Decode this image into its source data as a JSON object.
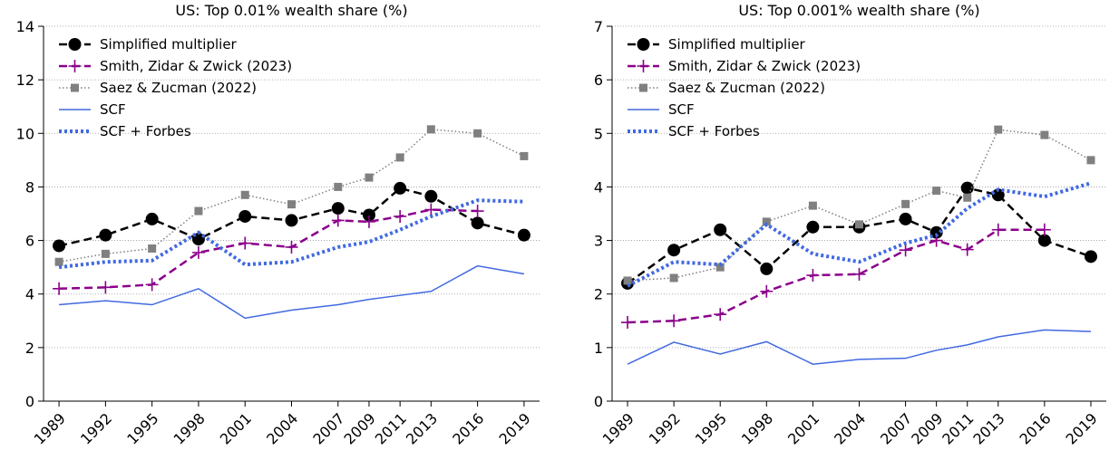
{
  "chart_data": [
    {
      "type": "line",
      "title": "US: Top 0.01% wealth share (%)",
      "x": [
        1989,
        1992,
        1995,
        1998,
        2001,
        2004,
        2007,
        2009,
        2011,
        2013,
        2016,
        2019
      ],
      "xlim": [
        1988,
        2020
      ],
      "xticks": [
        1989,
        1992,
        1995,
        1998,
        2001,
        2004,
        2007,
        2009,
        2011,
        2013,
        2016,
        2019
      ],
      "ylim": [
        0,
        14
      ],
      "yticks": [
        0,
        2,
        4,
        6,
        8,
        10,
        12,
        14
      ],
      "grid": true,
      "legend": "upper left",
      "series": [
        {
          "name": "Simplified multiplier",
          "color": "#000000",
          "linestyle": "dashed",
          "marker": "circle",
          "values": [
            5.8,
            6.2,
            6.8,
            6.05,
            6.9,
            6.75,
            7.2,
            6.95,
            7.95,
            7.65,
            6.65,
            6.2
          ]
        },
        {
          "name": "Smith, Zidar & Zwick (2023)",
          "color": "#8b008b",
          "linestyle": "dashed",
          "marker": "plus",
          "values": [
            4.2,
            4.25,
            4.35,
            5.55,
            5.9,
            5.75,
            6.75,
            6.7,
            6.9,
            7.15,
            7.1,
            null
          ]
        },
        {
          "name": "Saez & Zucman (2022)",
          "color": "#808080",
          "linestyle": "dotted",
          "marker": "square",
          "values": [
            5.2,
            5.5,
            5.7,
            7.1,
            7.7,
            7.35,
            8.0,
            8.35,
            9.1,
            10.15,
            10.0,
            9.15
          ]
        },
        {
          "name": "SCF",
          "color": "#4169e1",
          "linestyle": "solid",
          "marker": "none",
          "values": [
            3.6,
            3.75,
            3.6,
            4.2,
            3.1,
            3.4,
            3.6,
            3.8,
            3.95,
            4.1,
            5.05,
            4.75
          ]
        },
        {
          "name": "SCF + Forbes",
          "color": "#4169e1",
          "linestyle": "thick-dotted",
          "marker": "none",
          "values": [
            5.0,
            5.2,
            5.25,
            6.3,
            5.1,
            5.2,
            5.75,
            5.95,
            6.4,
            6.9,
            7.5,
            7.45
          ]
        }
      ]
    },
    {
      "type": "line",
      "title": "US: Top 0.001% wealth share (%)",
      "x": [
        1989,
        1992,
        1995,
        1998,
        2001,
        2004,
        2007,
        2009,
        2011,
        2013,
        2016,
        2019
      ],
      "xlim": [
        1988,
        2020
      ],
      "xticks": [
        1989,
        1992,
        1995,
        1998,
        2001,
        2004,
        2007,
        2009,
        2011,
        2013,
        2016,
        2019
      ],
      "ylim": [
        0,
        7
      ],
      "yticks": [
        0,
        1,
        2,
        3,
        4,
        5,
        6,
        7
      ],
      "grid": true,
      "legend": "upper left",
      "series": [
        {
          "name": "Simplified multiplier",
          "color": "#000000",
          "linestyle": "dashed",
          "marker": "circle",
          "values": [
            2.2,
            2.82,
            3.2,
            2.47,
            3.25,
            3.25,
            3.4,
            3.15,
            3.98,
            3.85,
            3.0,
            2.7
          ]
        },
        {
          "name": "Smith, Zidar & Zwick (2023)",
          "color": "#8b008b",
          "linestyle": "dashed",
          "marker": "plus",
          "values": [
            1.47,
            1.5,
            1.62,
            2.05,
            2.35,
            2.37,
            2.82,
            3.0,
            2.83,
            3.2,
            3.2,
            null
          ]
        },
        {
          "name": "Saez & Zucman (2022)",
          "color": "#808080",
          "linestyle": "dotted",
          "marker": "square",
          "values": [
            2.25,
            2.3,
            2.5,
            3.35,
            3.65,
            3.3,
            3.68,
            3.93,
            3.8,
            5.07,
            4.97,
            4.5
          ]
        },
        {
          "name": "SCF",
          "color": "#4169e1",
          "linestyle": "solid",
          "marker": "none",
          "values": [
            0.69,
            1.1,
            0.88,
            1.11,
            0.69,
            0.78,
            0.8,
            0.95,
            1.05,
            1.2,
            1.33,
            1.3
          ]
        },
        {
          "name": "SCF + Forbes",
          "color": "#4169e1",
          "linestyle": "thick-dotted",
          "marker": "none",
          "values": [
            2.15,
            2.6,
            2.55,
            3.3,
            2.75,
            2.6,
            2.95,
            3.1,
            3.6,
            3.95,
            3.82,
            4.07
          ]
        }
      ]
    }
  ]
}
